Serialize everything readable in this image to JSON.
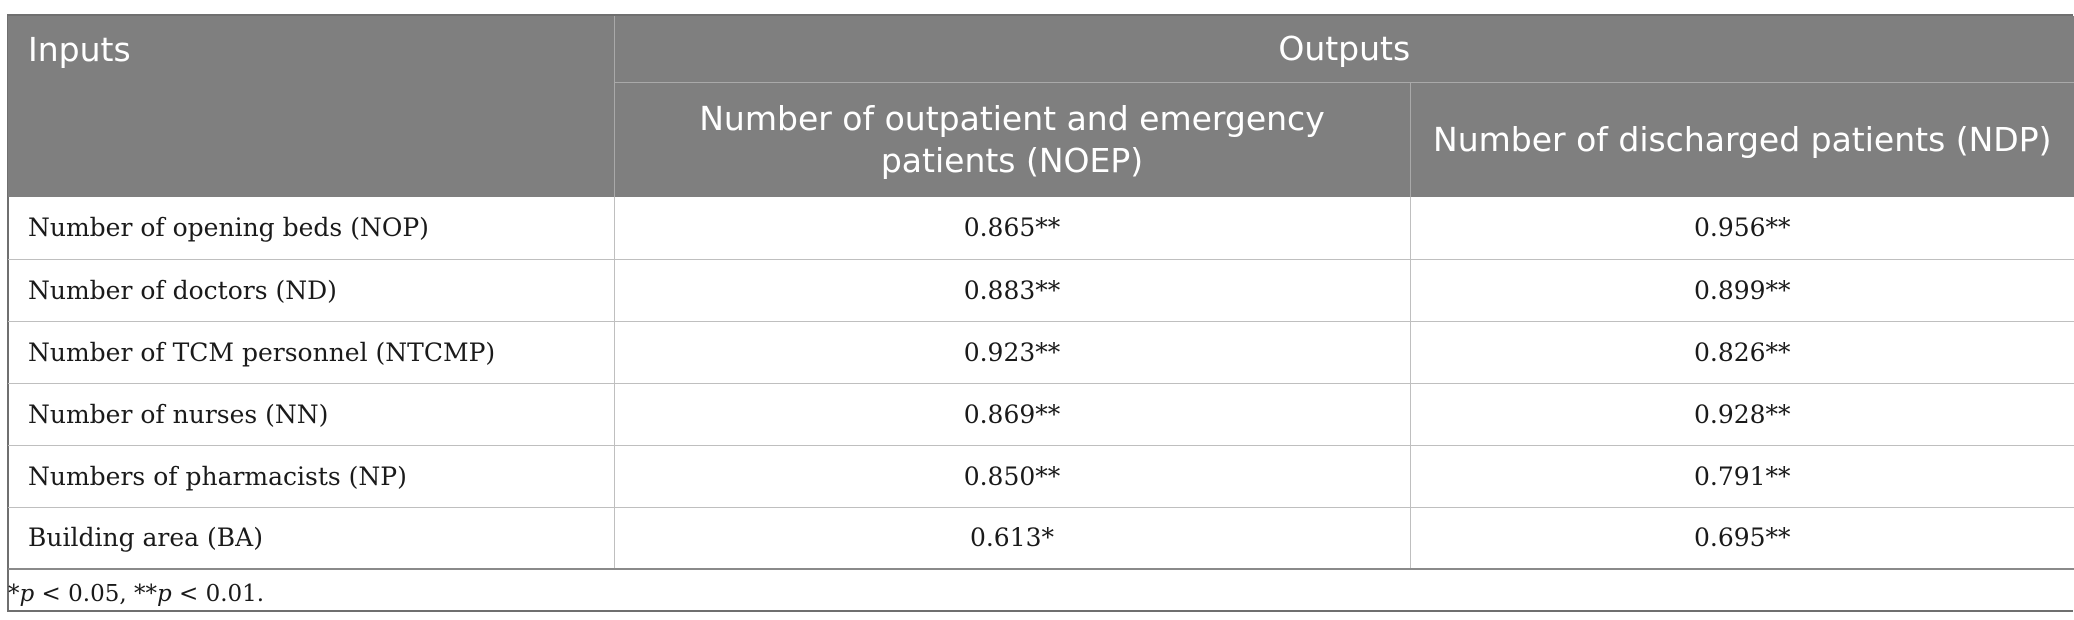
{
  "table": {
    "header": {
      "inputs": "Inputs",
      "outputs": "Outputs",
      "col_noep": "Number of outpatient and emergency patients (NOEP)",
      "col_ndp": "Number of discharged patients (NDP)"
    },
    "rows": [
      {
        "input": "Number of opening beds (NOP)",
        "noep": "0.865**",
        "ndp": "0.956**"
      },
      {
        "input": "Number of doctors (ND)",
        "noep": "0.883**",
        "ndp": "0.899**"
      },
      {
        "input": "Number of TCM personnel (NTCMP)",
        "noep": "0.923**",
        "ndp": "0.826**"
      },
      {
        "input": "Number of nurses (NN)",
        "noep": "0.869**",
        "ndp": "0.928**"
      },
      {
        "input": "Numbers of pharmacists (NP)",
        "noep": "0.850**",
        "ndp": "0.791**"
      },
      {
        "input": "Building area (BA)",
        "noep": "0.613*",
        "ndp": "0.695**"
      }
    ]
  },
  "footnote": {
    "star1": "*",
    "p1": "p",
    "cond1": " < 0.05, **",
    "p2": "p",
    "cond2": " < 0.01."
  },
  "colors": {
    "header_bg": "#7f7f7f",
    "header_text": "#ffffff",
    "grid": "#bfbfbf",
    "text": "#1a1a1a"
  }
}
